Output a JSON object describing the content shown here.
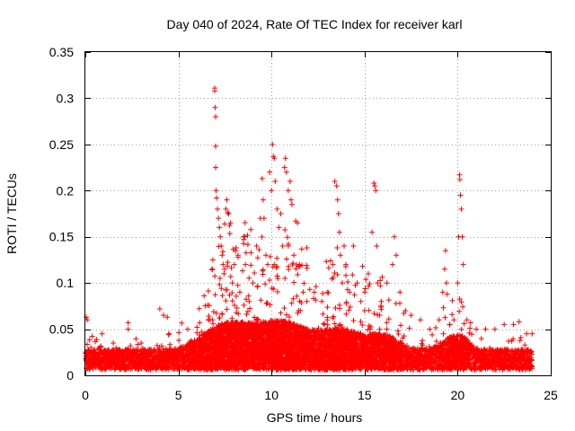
{
  "chart_data": {
    "type": "scatter",
    "title": "Day 040 of 2024, Rate Of TEC Index for receiver karl",
    "xlabel": "GPS time / hours",
    "ylabel": "ROTI / TECUs",
    "xlim": [
      0,
      25
    ],
    "ylim": [
      0,
      0.35
    ],
    "xticks": [
      0,
      5,
      10,
      15,
      20,
      25
    ],
    "xtick_labels": [
      "0",
      "5",
      "10",
      "15",
      "20",
      "25"
    ],
    "yticks": [
      0,
      0.05,
      0.1,
      0.15,
      0.2,
      0.25,
      0.3,
      0.35
    ],
    "ytick_labels": [
      "0",
      "0.05",
      "0.1",
      "0.15",
      "0.2",
      "0.25",
      "0.3",
      "0.35"
    ],
    "grid": true,
    "marker": "+",
    "color": "#ff0000",
    "series": [
      {
        "name": "ROTI",
        "points": [
          [
            0.05,
            0.063
          ],
          [
            0.1,
            0.06
          ],
          [
            0.3,
            0.03
          ],
          [
            0.9,
            0.045
          ],
          [
            1.5,
            0.035
          ],
          [
            2.3,
            0.057
          ],
          [
            2.3,
            0.05
          ],
          [
            3.0,
            0.035
          ],
          [
            4.0,
            0.072
          ],
          [
            4.2,
            0.065
          ],
          [
            4.4,
            0.063
          ],
          [
            4.5,
            0.045
          ],
          [
            5.5,
            0.05
          ],
          [
            6.0,
            0.052
          ],
          [
            6.7,
            0.06
          ],
          [
            6.85,
            0.125
          ],
          [
            6.95,
            0.311
          ],
          [
            6.95,
            0.308
          ],
          [
            6.97,
            0.29
          ],
          [
            7.0,
            0.28
          ],
          [
            7.0,
            0.248
          ],
          [
            7.0,
            0.225
          ],
          [
            7.02,
            0.2
          ],
          [
            7.05,
            0.192
          ],
          [
            7.1,
            0.18
          ],
          [
            7.15,
            0.17
          ],
          [
            7.2,
            0.16
          ],
          [
            7.25,
            0.15
          ],
          [
            7.3,
            0.14
          ],
          [
            7.35,
            0.13
          ],
          [
            7.4,
            0.12
          ],
          [
            7.45,
            0.11
          ],
          [
            7.55,
            0.18
          ],
          [
            7.6,
            0.19
          ],
          [
            7.65,
            0.176
          ],
          [
            7.7,
            0.175
          ],
          [
            7.8,
            0.165
          ],
          [
            7.9,
            0.1
          ],
          [
            8.0,
            0.12
          ],
          [
            8.1,
            0.138
          ],
          [
            8.2,
            0.13
          ],
          [
            8.3,
            0.09
          ],
          [
            8.5,
            0.15
          ],
          [
            8.5,
            0.147
          ],
          [
            8.6,
            0.12
          ],
          [
            8.8,
            0.08
          ],
          [
            9.0,
            0.1
          ],
          [
            9.2,
            0.14
          ],
          [
            9.4,
            0.17
          ],
          [
            9.5,
            0.213
          ],
          [
            9.55,
            0.19
          ],
          [
            9.6,
            0.17
          ],
          [
            9.7,
            0.13
          ],
          [
            9.8,
            0.12
          ],
          [
            9.9,
            0.22
          ],
          [
            10.0,
            0.2
          ],
          [
            10.05,
            0.25
          ],
          [
            10.1,
            0.237
          ],
          [
            10.15,
            0.235
          ],
          [
            10.2,
            0.21
          ],
          [
            10.3,
            0.18
          ],
          [
            10.4,
            0.16
          ],
          [
            10.5,
            0.175
          ],
          [
            10.6,
            0.14
          ],
          [
            10.7,
            0.225
          ],
          [
            10.75,
            0.235
          ],
          [
            10.8,
            0.22
          ],
          [
            10.9,
            0.2
          ],
          [
            11.0,
            0.21
          ],
          [
            11.05,
            0.19
          ],
          [
            11.1,
            0.185
          ],
          [
            11.2,
            0.13
          ],
          [
            11.3,
            0.167
          ],
          [
            11.4,
            0.165
          ],
          [
            11.5,
            0.12
          ],
          [
            11.7,
            0.09
          ],
          [
            11.9,
            0.08
          ],
          [
            12.3,
            0.09
          ],
          [
            12.7,
            0.08
          ],
          [
            13.0,
            0.06
          ],
          [
            13.3,
            0.12
          ],
          [
            13.4,
            0.21
          ],
          [
            13.5,
            0.205
          ],
          [
            13.55,
            0.19
          ],
          [
            13.6,
            0.175
          ],
          [
            13.65,
            0.155
          ],
          [
            13.7,
            0.13
          ],
          [
            13.8,
            0.1
          ],
          [
            13.9,
            0.14
          ],
          [
            14.0,
            0.12
          ],
          [
            14.2,
            0.09
          ],
          [
            14.4,
            0.14
          ],
          [
            14.6,
            0.1
          ],
          [
            14.8,
            0.08
          ],
          [
            15.0,
            0.07
          ],
          [
            15.2,
            0.11
          ],
          [
            15.4,
            0.155
          ],
          [
            15.5,
            0.208
          ],
          [
            15.55,
            0.205
          ],
          [
            15.6,
            0.2
          ],
          [
            15.65,
            0.14
          ],
          [
            15.7,
            0.1
          ],
          [
            15.9,
            0.08
          ],
          [
            16.2,
            0.1
          ],
          [
            16.5,
            0.12
          ],
          [
            16.6,
            0.15
          ],
          [
            16.7,
            0.13
          ],
          [
            16.9,
            0.09
          ],
          [
            17.2,
            0.07
          ],
          [
            17.5,
            0.065
          ],
          [
            18.0,
            0.06
          ],
          [
            18.5,
            0.05
          ],
          [
            19.0,
            0.06
          ],
          [
            19.2,
            0.09
          ],
          [
            19.3,
            0.115
          ],
          [
            19.35,
            0.135
          ],
          [
            19.4,
            0.1
          ],
          [
            19.8,
            0.06
          ],
          [
            20.0,
            0.1
          ],
          [
            20.05,
            0.15
          ],
          [
            20.1,
            0.217
          ],
          [
            20.12,
            0.212
          ],
          [
            20.15,
            0.195
          ],
          [
            20.2,
            0.18
          ],
          [
            20.25,
            0.15
          ],
          [
            20.3,
            0.12
          ],
          [
            20.5,
            0.06
          ],
          [
            21.0,
            0.05
          ],
          [
            21.5,
            0.05
          ],
          [
            22.0,
            0.05
          ],
          [
            22.5,
            0.055
          ],
          [
            23.0,
            0.055
          ],
          [
            23.3,
            0.058
          ],
          [
            23.7,
            0.045
          ],
          [
            24.0,
            0.045
          ]
        ]
      }
    ]
  }
}
